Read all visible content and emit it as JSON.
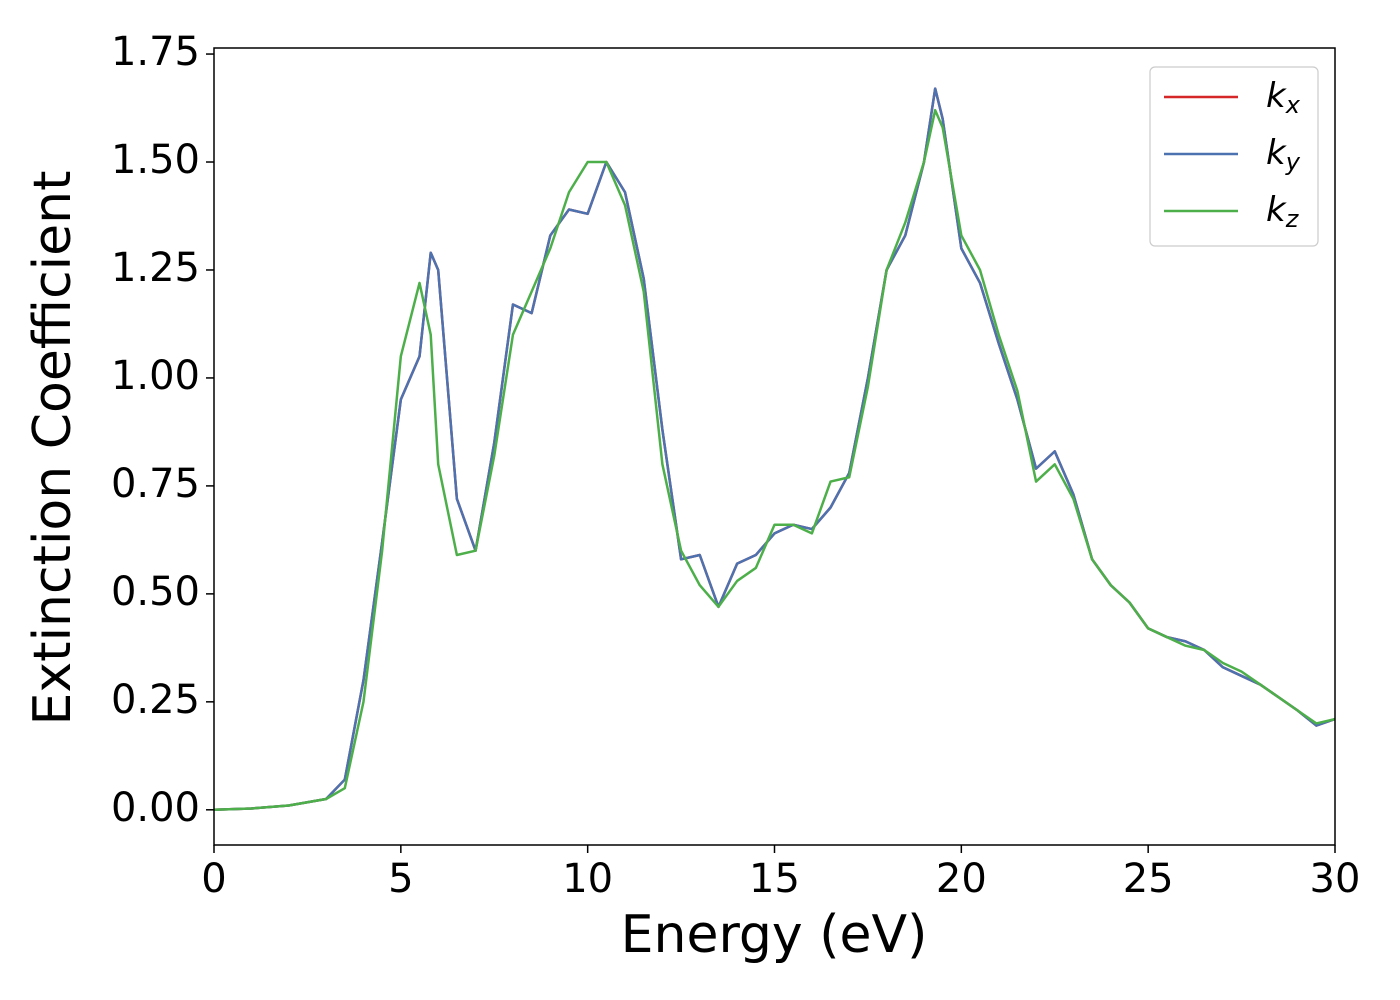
{
  "chart_data": {
    "type": "line",
    "xlabel": "Energy (eV)",
    "ylabel": "Extinction Coefficient",
    "x": [
      0,
      1,
      2,
      3,
      3.5,
      4,
      4.5,
      5,
      5.5,
      5.8,
      6,
      6.5,
      7,
      7.5,
      8,
      8.5,
      9,
      9.5,
      10,
      10.5,
      11,
      11.5,
      12,
      12.5,
      13,
      13.5,
      14,
      14.5,
      15,
      15.5,
      16,
      16.5,
      17,
      17.5,
      18,
      18.5,
      19,
      19.3,
      19.5,
      20,
      20.5,
      21,
      21.5,
      22,
      22.5,
      23,
      23.5,
      24,
      24.5,
      25,
      25.5,
      26,
      26.5,
      27,
      27.5,
      28,
      28.5,
      29,
      29.5,
      30
    ],
    "series": [
      {
        "name": "kx",
        "color": "#d62728",
        "values": [
          0,
          0.003,
          0.01,
          0.025,
          0.07,
          0.3,
          0.62,
          0.95,
          1.05,
          1.29,
          1.25,
          0.72,
          0.6,
          0.85,
          1.17,
          1.15,
          1.33,
          1.39,
          1.38,
          1.5,
          1.43,
          1.23,
          0.88,
          0.58,
          0.59,
          0.47,
          0.57,
          0.59,
          0.64,
          0.66,
          0.65,
          0.7,
          0.78,
          1.0,
          1.25,
          1.33,
          1.5,
          1.67,
          1.6,
          1.3,
          1.22,
          1.08,
          0.95,
          0.79,
          0.83,
          0.73,
          0.58,
          0.52,
          0.48,
          0.42,
          0.4,
          0.39,
          0.37,
          0.33,
          0.31,
          0.29,
          0.26,
          0.23,
          0.195,
          0.21
        ]
      },
      {
        "name": "ky",
        "color": "#4c72b0",
        "values": [
          0,
          0.003,
          0.01,
          0.025,
          0.07,
          0.3,
          0.62,
          0.95,
          1.05,
          1.29,
          1.25,
          0.72,
          0.6,
          0.85,
          1.17,
          1.15,
          1.33,
          1.39,
          1.38,
          1.5,
          1.43,
          1.23,
          0.88,
          0.58,
          0.59,
          0.47,
          0.57,
          0.59,
          0.64,
          0.66,
          0.65,
          0.7,
          0.78,
          1.0,
          1.25,
          1.33,
          1.5,
          1.67,
          1.6,
          1.3,
          1.22,
          1.08,
          0.95,
          0.79,
          0.83,
          0.73,
          0.58,
          0.52,
          0.48,
          0.42,
          0.4,
          0.39,
          0.37,
          0.33,
          0.31,
          0.29,
          0.26,
          0.23,
          0.195,
          0.21
        ]
      },
      {
        "name": "kz",
        "color": "#4daf4a",
        "values": [
          0,
          0.003,
          0.01,
          0.025,
          0.05,
          0.25,
          0.6,
          1.05,
          1.22,
          1.1,
          0.8,
          0.59,
          0.6,
          0.82,
          1.1,
          1.2,
          1.3,
          1.43,
          1.5,
          1.5,
          1.4,
          1.2,
          0.8,
          0.6,
          0.52,
          0.47,
          0.53,
          0.56,
          0.66,
          0.66,
          0.64,
          0.76,
          0.77,
          0.98,
          1.25,
          1.36,
          1.5,
          1.62,
          1.58,
          1.33,
          1.25,
          1.1,
          0.97,
          0.76,
          0.8,
          0.72,
          0.58,
          0.52,
          0.48,
          0.42,
          0.4,
          0.38,
          0.37,
          0.34,
          0.32,
          0.29,
          0.26,
          0.23,
          0.2,
          0.21
        ]
      }
    ],
    "xlim": [
      0,
      30
    ],
    "xticks": [
      0,
      5,
      10,
      15,
      20,
      25,
      30
    ],
    "ylim": [
      -0.0815,
      1.764
    ],
    "yticks": [
      {
        "value": 0,
        "label": "0.00"
      },
      {
        "value": 0.25,
        "label": "0.25"
      },
      {
        "value": 0.5,
        "label": "0.50"
      },
      {
        "value": 0.75,
        "label": "0.75"
      },
      {
        "value": 1,
        "label": "1.00"
      },
      {
        "value": 1.25,
        "label": "1.25"
      },
      {
        "value": 1.5,
        "label": "1.50"
      },
      {
        "value": 1.75,
        "label": "1.75"
      }
    ],
    "legend": "upper right"
  }
}
